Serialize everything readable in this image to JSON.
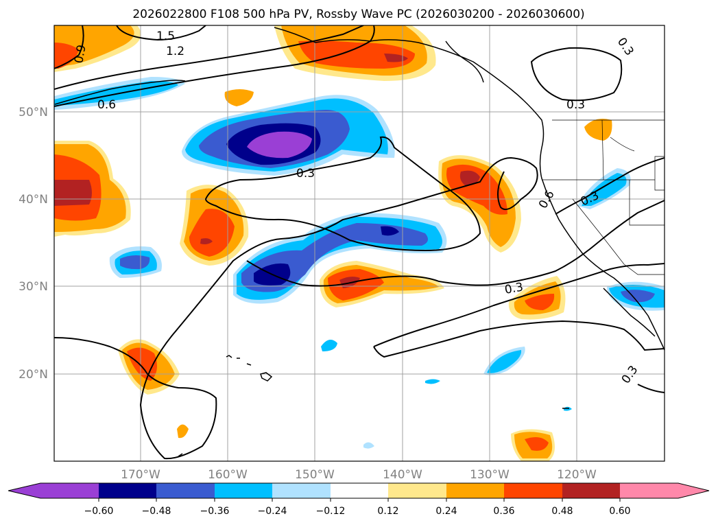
{
  "title": "2026022800 F108 500 hPa PV, Rossby Wave PC (2026030200 - 2026030600)",
  "lon_labels": [
    "170°W",
    "160°W",
    "150°W",
    "140°W",
    "130°W",
    "120°W"
  ],
  "lat_labels": [
    "50°N",
    "40°N",
    "30°N",
    "20°N"
  ],
  "colorbar": {
    "tick_labels": [
      "−0.60",
      "−0.48",
      "−0.36",
      "−0.24",
      "−0.12",
      "0.12",
      "0.24",
      "0.36",
      "0.48",
      "0.60"
    ],
    "levels": [
      -0.6,
      -0.48,
      -0.36,
      -0.24,
      -0.12,
      0.12,
      0.24,
      0.36,
      0.48,
      0.6
    ],
    "colors": {
      "under": "#9a3fd5",
      "b1": "#00008b",
      "b2": "#3a5bd0",
      "b3": "#00bfff",
      "b4": "#b0e2ff",
      "b5": "#ffffff",
      "b6": "#ffe88c",
      "b7": "#ffa500",
      "b8": "#ff4500",
      "b9": "#b22222",
      "over": "#ff88aa"
    }
  },
  "contour_labels": [
    "1.5",
    "1.2",
    "0.9",
    "0.6",
    "0.3",
    "0.3",
    "0.3",
    "0.6",
    "0.3",
    "0.3",
    "0.3"
  ],
  "map": {
    "extent": {
      "lon": [
        -180,
        -110
      ],
      "lat": [
        10,
        60
      ]
    },
    "grid": true,
    "field": "Rossby Wave PC (shaded)",
    "contours": "500 hPa PV (black lines)"
  }
}
